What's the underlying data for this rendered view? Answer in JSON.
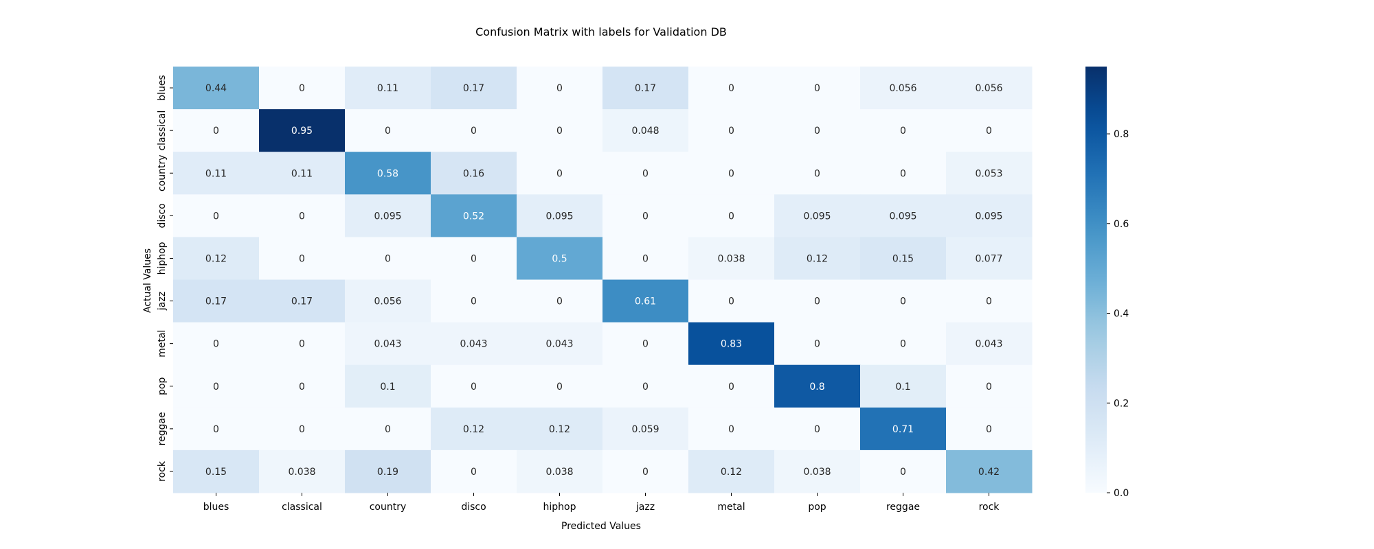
{
  "chart_data": {
    "type": "heatmap",
    "title": "Confusion Matrix with labels for Validation DB",
    "xlabel": "Predicted Values",
    "ylabel": "Actual Values",
    "x_categories": [
      "blues",
      "classical",
      "country",
      "disco",
      "hiphop",
      "jazz",
      "metal",
      "pop",
      "reggae",
      "rock"
    ],
    "y_categories": [
      "blues",
      "classical",
      "country",
      "disco",
      "hiphop",
      "jazz",
      "metal",
      "pop",
      "reggae",
      "rock"
    ],
    "values": [
      [
        0.44,
        0,
        0.11,
        0.17,
        0,
        0.17,
        0,
        0,
        0.056,
        0.056
      ],
      [
        0,
        0.95,
        0,
        0,
        0,
        0.048,
        0,
        0,
        0,
        0
      ],
      [
        0.11,
        0.11,
        0.58,
        0.16,
        0,
        0,
        0,
        0,
        0,
        0.053
      ],
      [
        0,
        0,
        0.095,
        0.52,
        0.095,
        0,
        0,
        0.095,
        0.095,
        0.095
      ],
      [
        0.12,
        0,
        0,
        0,
        0.5,
        0,
        0.038,
        0.12,
        0.15,
        0.077
      ],
      [
        0.17,
        0.17,
        0.056,
        0,
        0,
        0.61,
        0,
        0,
        0,
        0
      ],
      [
        0,
        0,
        0.043,
        0.043,
        0.043,
        0,
        0.83,
        0,
        0,
        0.043
      ],
      [
        0,
        0,
        0.1,
        0,
        0,
        0,
        0,
        0.8,
        0.1,
        0
      ],
      [
        0,
        0,
        0,
        0.12,
        0.12,
        0.059,
        0,
        0,
        0.71,
        0
      ],
      [
        0.15,
        0.038,
        0.19,
        0,
        0.038,
        0,
        0.12,
        0.038,
        0,
        0.42
      ]
    ],
    "colormap": "Blues",
    "colorbar": {
      "range": [
        0,
        0.95
      ],
      "ticks": [
        0.0,
        0.2,
        0.4,
        0.6,
        0.8
      ],
      "tick_labels": [
        "0.0",
        "0.2",
        "0.4",
        "0.6",
        "0.8"
      ]
    }
  }
}
